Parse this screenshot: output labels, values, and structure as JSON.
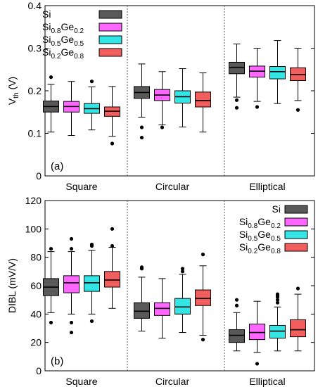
{
  "colors": {
    "Si": "#595959",
    "Si0.8Ge0.2": "#ff66ff",
    "Si0.5Ge0.5": "#33e6e6",
    "Si0.2Ge0.8": "#f25d5d"
  },
  "chart_data": [
    {
      "type": "box",
      "panel_label": "(a)",
      "ylabel": {
        "main": "V",
        "sub": "th",
        "rest": " (V)"
      },
      "ylim": [
        0,
        0.4
      ],
      "yticks": [
        "0",
        "0.1",
        "0.2",
        "0.3",
        "0.4"
      ],
      "ytick_values": [
        0,
        0.1,
        0.2,
        0.3,
        0.4
      ],
      "categories": [
        "Square",
        "Circular",
        "Elliptical"
      ],
      "legend_position": "top-left",
      "series": [
        {
          "key": "Si",
          "legend": {
            "parts": [
              {
                "t": "Si",
                "sub": false
              }
            ]
          },
          "boxes": [
            {
              "min": 0.103,
              "q1": 0.15,
              "median": 0.163,
              "q3": 0.176,
              "max": 0.215,
              "outliers": [
                0.232
              ]
            },
            {
              "min": 0.138,
              "q1": 0.182,
              "median": 0.196,
              "q3": 0.21,
              "max": 0.263,
              "outliers": [
                0.114,
                0.09
              ]
            },
            {
              "min": 0.185,
              "q1": 0.24,
              "median": 0.255,
              "q3": 0.267,
              "max": 0.31,
              "outliers": [
                0.178,
                0.16
              ]
            }
          ]
        },
        {
          "key": "Si0.8Ge0.2",
          "legend": {
            "parts": [
              {
                "t": "Si",
                "sub": false
              },
              {
                "t": "0.8",
                "sub": true
              },
              {
                "t": "Ge",
                "sub": false
              },
              {
                "t": "0.2",
                "sub": true
              }
            ]
          },
          "boxes": [
            {
              "min": 0.095,
              "q1": 0.15,
              "median": 0.163,
              "q3": 0.175,
              "max": 0.222,
              "outliers": []
            },
            {
              "min": 0.12,
              "q1": 0.177,
              "median": 0.19,
              "q3": 0.203,
              "max": 0.245,
              "outliers": [
                0.114
              ]
            },
            {
              "min": 0.175,
              "q1": 0.232,
              "median": 0.246,
              "q3": 0.258,
              "max": 0.3,
              "outliers": [
                0.162
              ]
            }
          ]
        },
        {
          "key": "Si0.5Ge0.5",
          "legend": {
            "parts": [
              {
                "t": "Si",
                "sub": false
              },
              {
                "t": "0.5",
                "sub": true
              },
              {
                "t": "Ge",
                "sub": false
              },
              {
                "t": "0.5",
                "sub": true
              }
            ]
          },
          "boxes": [
            {
              "min": 0.108,
              "q1": 0.147,
              "median": 0.158,
              "q3": 0.17,
              "max": 0.209,
              "outliers": [
                0.222
              ]
            },
            {
              "min": 0.115,
              "q1": 0.171,
              "median": 0.186,
              "q3": 0.2,
              "max": 0.252,
              "outliers": []
            },
            {
              "min": 0.17,
              "q1": 0.228,
              "median": 0.245,
              "q3": 0.257,
              "max": 0.318,
              "outliers": []
            }
          ]
        },
        {
          "key": "Si0.2Ge0.8",
          "legend": {
            "parts": [
              {
                "t": "Si",
                "sub": false
              },
              {
                "t": "0.2",
                "sub": true
              },
              {
                "t": "Ge",
                "sub": false
              },
              {
                "t": "0.8",
                "sub": true
              }
            ]
          },
          "boxes": [
            {
              "min": 0.093,
              "q1": 0.14,
              "median": 0.152,
              "q3": 0.162,
              "max": 0.21,
              "outliers": [
                0.076
              ]
            },
            {
              "min": 0.103,
              "q1": 0.162,
              "median": 0.177,
              "q3": 0.197,
              "max": 0.242,
              "outliers": []
            },
            {
              "min": 0.177,
              "q1": 0.224,
              "median": 0.238,
              "q3": 0.254,
              "max": 0.3,
              "outliers": [
                0.155
              ]
            }
          ]
        }
      ]
    },
    {
      "type": "box",
      "panel_label": "(b)",
      "ylabel": {
        "main": "DIBL (mV/V)",
        "sub": "",
        "rest": ""
      },
      "ylim": [
        0,
        120
      ],
      "yticks": [
        "0",
        "20",
        "40",
        "60",
        "80",
        "100",
        "120"
      ],
      "ytick_values": [
        0,
        20,
        40,
        60,
        80,
        100,
        120
      ],
      "categories": [
        "Square",
        "Circular",
        "Elliptical"
      ],
      "legend_position": "top-right",
      "series": [
        {
          "key": "Si",
          "legend": {
            "parts": [
              {
                "t": "Si",
                "sub": false
              }
            ]
          },
          "boxes": [
            {
              "min": 41,
              "q1": 53,
              "median": 59,
              "q3": 65,
              "max": 84,
              "outliers": [
                86,
                34
              ]
            },
            {
              "min": 28,
              "q1": 37,
              "median": 42,
              "q3": 48,
              "max": 66,
              "outliers": [
                72,
                73
              ]
            },
            {
              "min": 14,
              "q1": 20,
              "median": 25,
              "q3": 29,
              "max": 41,
              "outliers": [
                46,
                50
              ]
            }
          ]
        },
        {
          "key": "Si0.8Ge0.2",
          "legend": {
            "parts": [
              {
                "t": "Si",
                "sub": false
              },
              {
                "t": "0.8",
                "sub": true
              },
              {
                "t": "Ge",
                "sub": false
              },
              {
                "t": "0.2",
                "sub": true
              }
            ]
          },
          "boxes": [
            {
              "min": 40,
              "q1": 55,
              "median": 62,
              "q3": 67,
              "max": 84,
              "outliers": [
                86,
                93,
                34,
                27
              ]
            },
            {
              "min": 23,
              "q1": 39,
              "median": 44,
              "q3": 48,
              "max": 65,
              "outliers": []
            },
            {
              "min": 13,
              "q1": 22,
              "median": 27,
              "q3": 33,
              "max": 49,
              "outliers": [
                5
              ]
            }
          ]
        },
        {
          "key": "Si0.5Ge0.5",
          "legend": {
            "parts": [
              {
                "t": "Si",
                "sub": false
              },
              {
                "t": "0.5",
                "sub": true
              },
              {
                "t": "Ge",
                "sub": false
              },
              {
                "t": "0.5",
                "sub": true
              }
            ]
          },
          "boxes": [
            {
              "min": 40,
              "q1": 56,
              "median": 62,
              "q3": 67,
              "max": 85,
              "outliers": [
                89,
                88,
                35
              ]
            },
            {
              "min": 27,
              "q1": 40,
              "median": 45,
              "q3": 51,
              "max": 68,
              "outliers": [
                70,
                72
              ]
            },
            {
              "min": 14,
              "q1": 23,
              "median": 28,
              "q3": 32,
              "max": 45,
              "outliers": [
                48,
                50,
                52,
                53,
                54
              ]
            }
          ]
        },
        {
          "key": "Si0.2Ge0.8",
          "legend": {
            "parts": [
              {
                "t": "Si",
                "sub": false
              },
              {
                "t": "0.2",
                "sub": true
              },
              {
                "t": "Ge",
                "sub": false
              },
              {
                "t": "0.8",
                "sub": true
              }
            ]
          },
          "boxes": [
            {
              "min": 44,
              "q1": 59,
              "median": 64,
              "q3": 70,
              "max": 87,
              "outliers": [
                88,
                100
              ]
            },
            {
              "min": 25,
              "q1": 46,
              "median": 51,
              "q3": 57,
              "max": 74,
              "outliers": [
                82,
                22
              ]
            },
            {
              "min": 14,
              "q1": 24,
              "median": 29,
              "q3": 36,
              "max": 54,
              "outliers": [
                58
              ]
            }
          ]
        }
      ]
    }
  ]
}
